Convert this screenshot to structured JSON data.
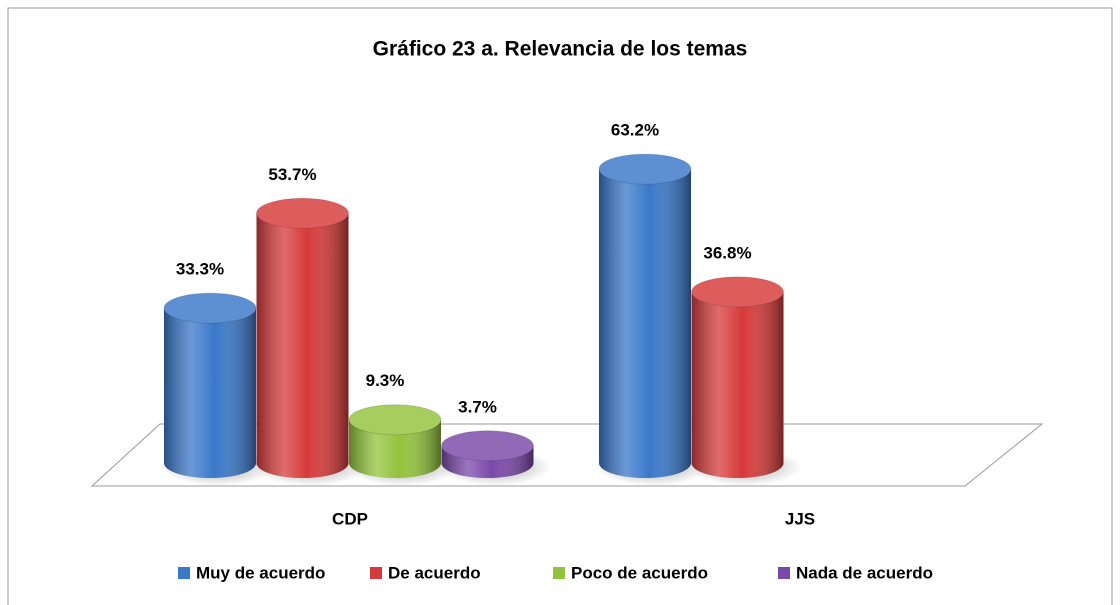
{
  "chart_data": {
    "type": "bar3d",
    "title": "Gráfico 23 a. Relevancia de los temas",
    "categories": [
      "CDP",
      "JJS"
    ],
    "series": [
      {
        "name": "Muy de acuerdo",
        "color": "#3a78c9",
        "values": [
          33.3,
          63.2
        ],
        "value_labels": [
          "33.3%",
          "63.2%"
        ]
      },
      {
        "name": "De acuerdo",
        "color": "#d63a3a",
        "values": [
          53.7,
          36.8
        ],
        "value_labels": [
          "53.7%",
          "36.8%"
        ]
      },
      {
        "name": "Poco de acuerdo",
        "color": "#92c43b",
        "values": [
          9.3,
          null
        ],
        "value_labels": [
          "9.3%",
          null
        ]
      },
      {
        "name": "Nada de acuerdo",
        "color": "#7a48a8",
        "values": [
          3.7,
          null
        ],
        "value_labels": [
          "3.7%",
          null
        ]
      }
    ],
    "legend": "bottom"
  }
}
